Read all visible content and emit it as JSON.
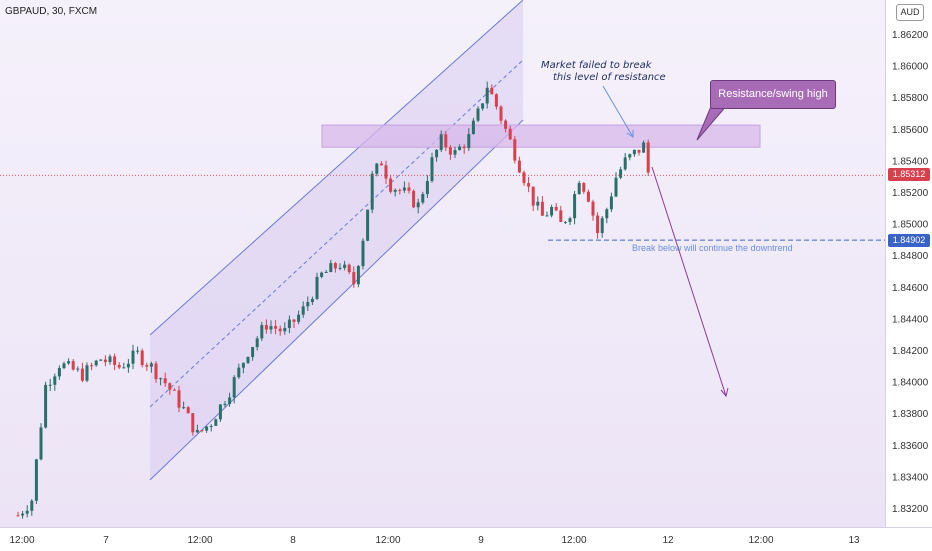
{
  "symbol": "GBPAUD, 30, FXCM",
  "currency": "AUD",
  "annotations": {
    "market_note": [
      "Market failed to break",
      "this level of resistance"
    ],
    "callout": "Resistance/swing high",
    "break_note": "Break below will continue the downtrend"
  },
  "last_price": "1.85312",
  "support_price": "1.84902",
  "colors": {
    "up": "#2b6f6b",
    "down": "#d8404d",
    "zone": "#d7b8ea",
    "channel": "#6b7cc9",
    "callout": "#a86bb6",
    "projection": "#8e3b8f",
    "support": "#3a63c8"
  },
  "chart_data": {
    "type": "candlestick",
    "title": "GBPAUD, 30, FXCM",
    "y_ticks": [
      "1.86200",
      "1.86000",
      "1.85800",
      "1.85600",
      "1.85400",
      "1.85200",
      "1.85000",
      "1.84800",
      "1.84600",
      "1.84400",
      "1.84200",
      "1.84000",
      "1.83800",
      "1.83600",
      "1.83400",
      "1.83200"
    ],
    "x_ticks": [
      "12:00",
      "7",
      "12:00",
      "8",
      "12:00",
      "9",
      "12:00",
      "12",
      "12:00",
      "13"
    ],
    "ylim": [
      1.8311,
      1.8636
    ],
    "resistance_zone": [
      1.8549,
      1.8563
    ],
    "support_level": 1.84902,
    "last_price": 1.85312,
    "ohlc_waypoints": [
      [
        0,
        1.8316
      ],
      [
        3,
        1.8326
      ],
      [
        6,
        1.8398
      ],
      [
        9,
        1.8412
      ],
      [
        14,
        1.8405
      ],
      [
        18,
        1.8415
      ],
      [
        22,
        1.841
      ],
      [
        26,
        1.8418
      ],
      [
        29,
        1.841
      ],
      [
        32,
        1.84
      ],
      [
        36,
        1.8383
      ],
      [
        39,
        1.8367
      ],
      [
        42,
        1.8375
      ],
      [
        46,
        1.8395
      ],
      [
        50,
        1.842
      ],
      [
        54,
        1.8437
      ],
      [
        58,
        1.8432
      ],
      [
        62,
        1.8446
      ],
      [
        66,
        1.8468
      ],
      [
        70,
        1.8475
      ],
      [
        73,
        1.8463
      ],
      [
        75,
        1.8492
      ],
      [
        77,
        1.853
      ],
      [
        79,
        1.854
      ],
      [
        81,
        1.8525
      ],
      [
        84,
        1.852
      ],
      [
        87,
        1.8512
      ],
      [
        90,
        1.854
      ],
      [
        92,
        1.8553
      ],
      [
        95,
        1.8545
      ],
      [
        98,
        1.8555
      ],
      [
        100,
        1.857
      ],
      [
        102,
        1.8588
      ],
      [
        104,
        1.8575
      ],
      [
        106,
        1.856
      ],
      [
        108,
        1.8545
      ],
      [
        110,
        1.853
      ],
      [
        112,
        1.8515
      ],
      [
        114,
        1.8505
      ],
      [
        116,
        1.851
      ],
      [
        118,
        1.85
      ],
      [
        120,
        1.8508
      ],
      [
        122,
        1.853
      ],
      [
        124,
        1.8518
      ],
      [
        126,
        1.8495
      ],
      [
        128,
        1.851
      ],
      [
        130,
        1.853
      ],
      [
        132,
        1.854
      ],
      [
        134,
        1.8545
      ],
      [
        136,
        1.855
      ],
      [
        137,
        1.8533
      ]
    ]
  }
}
